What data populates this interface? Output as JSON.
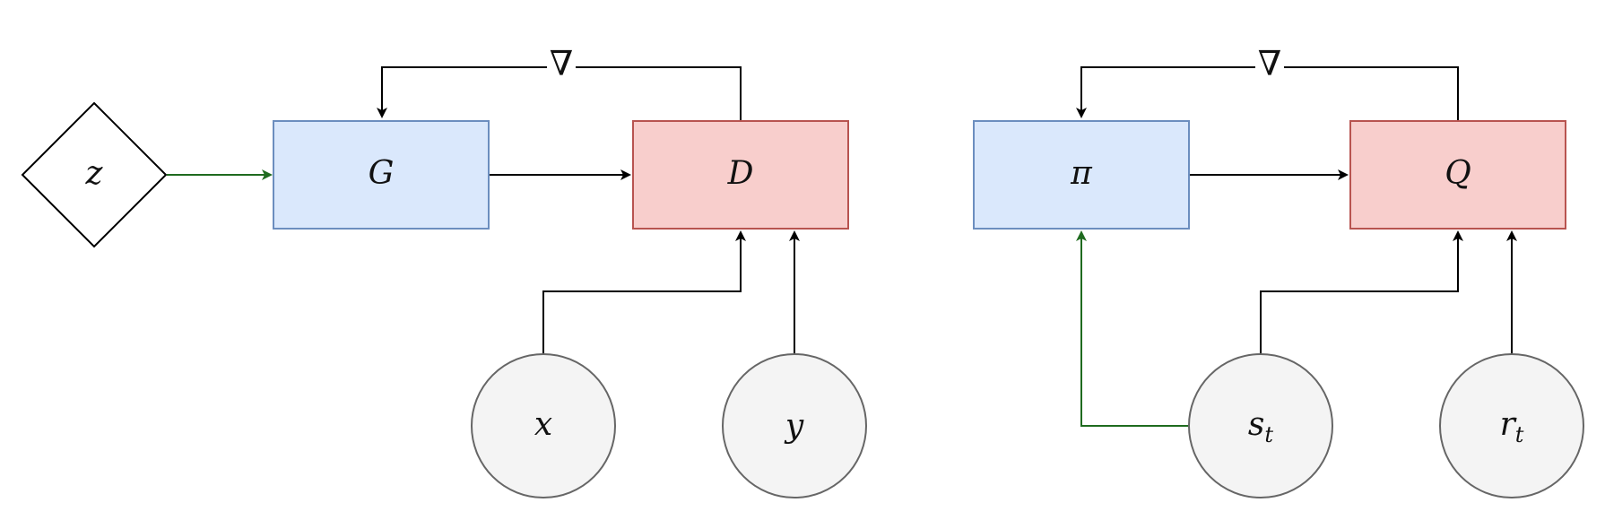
{
  "gan": {
    "latent": "z",
    "generator": "G",
    "discriminator": "D",
    "input_x": "x",
    "input_y": "y",
    "gradient": "∇"
  },
  "rl": {
    "policy": "π",
    "critic": "Q",
    "state_base": "s",
    "state_sub": "t",
    "reward_base": "r",
    "reward_sub": "t",
    "gradient": "∇"
  },
  "colors": {
    "blue_fill": "#dae8fc",
    "blue_stroke": "#6c8ebf",
    "red_fill": "#f8cecc",
    "red_stroke": "#b85450",
    "grey_fill": "#f5f5f5",
    "grey_stroke": "#666666",
    "green_edge": "#1f6b1f",
    "black_edge": "#000000"
  }
}
